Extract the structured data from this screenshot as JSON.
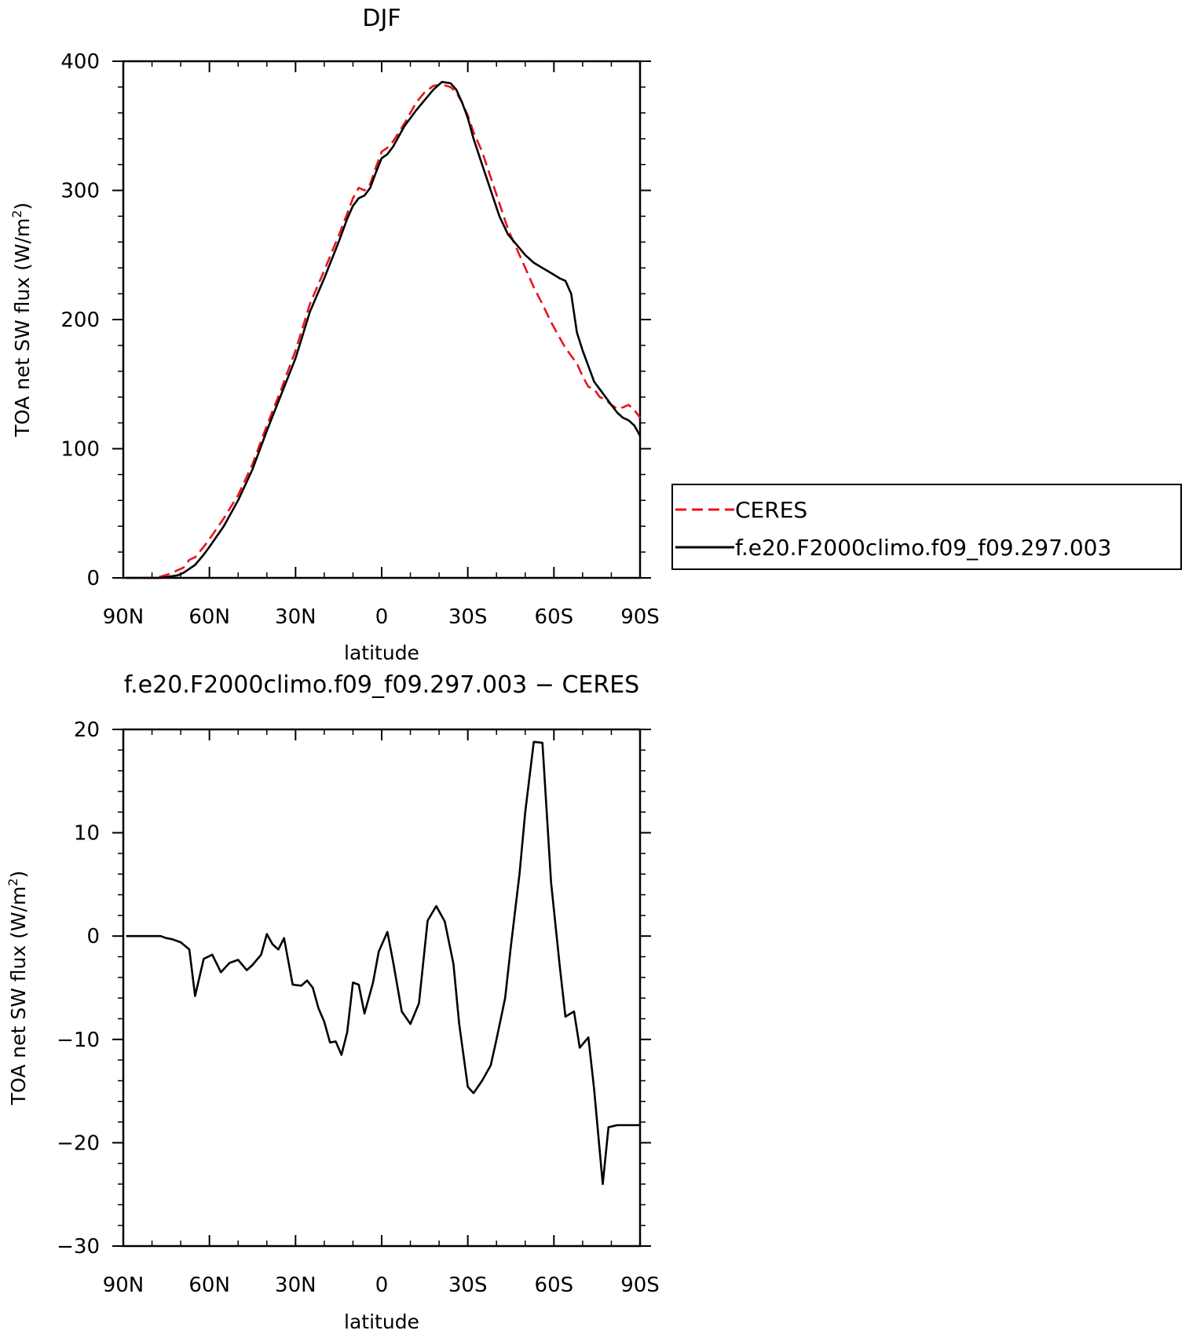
{
  "colors": {
    "ceres": "#e8141c",
    "model": "#000000"
  },
  "chart_data": [
    {
      "type": "line",
      "title": "DJF",
      "xlabel": "latitude",
      "ylabel_main": "TOA net SW flux  (W/m",
      "ylabel_sup": "2",
      "ylabel_close": ")",
      "xlim": [
        90,
        -90
      ],
      "ylim": [
        0,
        400
      ],
      "xticks": [
        90,
        60,
        30,
        0,
        -30,
        -60,
        -90
      ],
      "xtick_labels": [
        "90N",
        "60N",
        "30N",
        "0",
        "30S",
        "60S",
        "90S"
      ],
      "yticks": [
        0,
        100,
        200,
        300,
        400
      ],
      "ytick_labels": [
        "0",
        "100",
        "200",
        "300",
        "400"
      ],
      "legend": {
        "placement": "right",
        "entries": [
          "CERES",
          "f.e20.F2000climo.f09_f09.297.003"
        ]
      },
      "series": [
        {
          "name": "CERES",
          "style": "dashed",
          "color": "#e8141c",
          "x": [
            89,
            85,
            80,
            77,
            74,
            71,
            69,
            67,
            65,
            62,
            60,
            55,
            50,
            45,
            40,
            35,
            30,
            25,
            20,
            15,
            12,
            10,
            8,
            6,
            4,
            2,
            0,
            -2,
            -4,
            -6,
            -8,
            -10,
            -12,
            -15,
            -18,
            -21,
            -24,
            -26,
            -28,
            -30,
            -32,
            -35,
            -38,
            -41,
            -44,
            -47,
            -50,
            -53,
            -56,
            -59,
            -62,
            -64,
            -66,
            -68,
            -70,
            -72,
            -74,
            -76,
            -78,
            -80,
            -82,
            -84,
            -86,
            -88,
            -90
          ],
          "y": [
            0,
            0,
            0,
            1,
            3,
            6,
            8,
            14,
            16,
            24,
            30,
            46,
            64,
            88,
            118,
            146,
            176,
            212,
            238,
            265,
            282,
            294,
            302,
            300,
            305,
            318,
            330,
            333,
            338,
            345,
            352,
            360,
            368,
            376,
            381,
            382,
            380,
            376,
            368,
            358,
            345,
            330,
            310,
            290,
            270,
            255,
            240,
            225,
            212,
            198,
            186,
            178,
            172,
            166,
            156,
            148,
            146,
            140,
            138,
            134,
            131,
            132,
            134,
            130,
            124
          ]
        },
        {
          "name": "f.e20.F2000climo.f09_f09.297.003",
          "style": "solid",
          "color": "#000000",
          "x": [
            89,
            85,
            80,
            77,
            74,
            71,
            69,
            67,
            65,
            62,
            60,
            55,
            50,
            45,
            40,
            35,
            30,
            25,
            20,
            15,
            12,
            10,
            8,
            6,
            4,
            2,
            0,
            -2,
            -4,
            -6,
            -8,
            -10,
            -12,
            -15,
            -18,
            -21,
            -24,
            -26,
            -28,
            -30,
            -32,
            -35,
            -38,
            -41,
            -44,
            -47,
            -50,
            -53,
            -56,
            -59,
            -62,
            -64,
            -66,
            -68,
            -70,
            -72,
            -74,
            -76,
            -78,
            -80,
            -82,
            -84,
            -86,
            -88,
            -90
          ],
          "y": [
            0,
            0,
            0,
            0,
            1,
            2,
            4,
            7,
            10,
            18,
            24,
            40,
            60,
            84,
            114,
            142,
            170,
            206,
            232,
            260,
            278,
            288,
            294,
            296,
            302,
            314,
            325,
            328,
            334,
            342,
            350,
            356,
            362,
            370,
            378,
            384,
            383,
            378,
            368,
            356,
            340,
            320,
            300,
            280,
            266,
            258,
            250,
            244,
            240,
            236,
            232,
            230,
            220,
            190,
            176,
            164,
            152,
            146,
            140,
            134,
            128,
            124,
            122,
            118,
            110
          ]
        }
      ]
    },
    {
      "type": "line",
      "title": "f.e20.F2000climo.f09_f09.297.003 − CERES",
      "xlabel": "latitude",
      "ylabel_main": "TOA net SW flux  (W/m",
      "ylabel_sup": "2",
      "ylabel_close": ")",
      "xlim": [
        90,
        -90
      ],
      "ylim": [
        -30,
        20
      ],
      "xticks": [
        90,
        60,
        30,
        0,
        -30,
        -60,
        -90
      ],
      "xtick_labels": [
        "90N",
        "60N",
        "30N",
        "0",
        "30S",
        "60S",
        "90S"
      ],
      "yticks": [
        -30,
        -20,
        -10,
        0,
        10,
        20
      ],
      "ytick_labels": [
        "−30",
        "−20",
        "−10",
        "0",
        "10",
        "20"
      ],
      "series": [
        {
          "style": "solid",
          "color": "#000000",
          "x": [
            89,
            85,
            80,
            77,
            75,
            73,
            70,
            67,
            65,
            62,
            59,
            56,
            53,
            50,
            47,
            45,
            42,
            40,
            38,
            36,
            34,
            31,
            28,
            26,
            24,
            22,
            20,
            18,
            16,
            14,
            12,
            10,
            8,
            6,
            3,
            1,
            -2,
            -4,
            -7,
            -10,
            -13,
            -16,
            -19,
            -22,
            -25,
            -27,
            -30,
            -32,
            -35,
            -38,
            -40,
            -43,
            -45,
            -48,
            -50,
            -53,
            -56,
            -59,
            -62,
            -64,
            -67,
            -69,
            -72,
            -74,
            -77,
            -79,
            -82,
            -84,
            -86,
            -88,
            -90
          ],
          "y": [
            0,
            0,
            0,
            0,
            -0.2,
            -0.3,
            -0.6,
            -1.3,
            -5.8,
            -2.2,
            -1.8,
            -3.5,
            -2.6,
            -2.3,
            -3.3,
            -2.8,
            -1.8,
            0.2,
            -0.8,
            -1.3,
            -0.2,
            -4.7,
            -4.8,
            -4.3,
            -5.0,
            -7.0,
            -8.3,
            -10.3,
            -10.2,
            -11.5,
            -9.3,
            -4.5,
            -4.7,
            -7.5,
            -4.5,
            -1.5,
            0.4,
            -2.5,
            -7.3,
            -8.5,
            -6.5,
            1.5,
            2.9,
            1.4,
            -2.7,
            -8.5,
            -14.6,
            -15.2,
            -14.0,
            -12.5,
            -10.0,
            -6.0,
            -1.0,
            6.0,
            12.0,
            18.8,
            18.7,
            5.2,
            -2.8,
            -7.8,
            -7.3,
            -10.8,
            -9.8,
            -14.8,
            -24.0,
            -18.5,
            -18.3,
            -18.3,
            -18.3,
            -18.3,
            -18.3
          ]
        }
      ]
    }
  ]
}
